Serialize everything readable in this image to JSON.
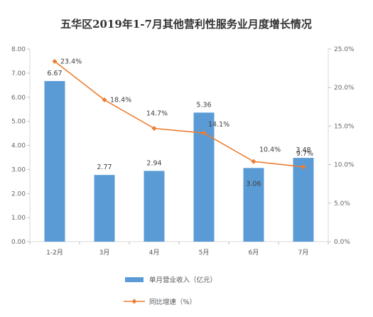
{
  "chart_data": {
    "type": "bar+line",
    "title": "五华区2019年1-7月其他营利性服务业月度增长情况",
    "categories": [
      "1-2月",
      "3月",
      "4月",
      "5月",
      "6月",
      "7月"
    ],
    "series": [
      {
        "name": "单月营业收入（亿元）",
        "type": "bar",
        "axis": "left",
        "values": [
          6.67,
          2.77,
          2.94,
          5.36,
          3.06,
          3.48
        ],
        "labels": [
          "6.67",
          "2.77",
          "2.94",
          "5.36",
          "3.06",
          "3.48"
        ],
        "color": "#5b9bd5"
      },
      {
        "name": "同比增速（%）",
        "type": "line",
        "axis": "right",
        "values": [
          23.4,
          18.4,
          14.7,
          14.1,
          10.4,
          9.7
        ],
        "labels": [
          "23.4%",
          "18.4%",
          "14.7%",
          "14.1%",
          "10.4%",
          "9.7%"
        ],
        "color": "#ed7d31"
      }
    ],
    "y_left": {
      "ylim": [
        0,
        8
      ],
      "ticks": [
        "0.00",
        "1.00",
        "2.00",
        "3.00",
        "4.00",
        "5.00",
        "6.00",
        "7.00",
        "8.00"
      ]
    },
    "y_right": {
      "ylim": [
        0,
        25
      ],
      "ticks": [
        "0.0%",
        "5.0%",
        "10.0%",
        "15.0%",
        "20.0%",
        "25.0%"
      ]
    },
    "grid": false,
    "legend": "bottom"
  }
}
